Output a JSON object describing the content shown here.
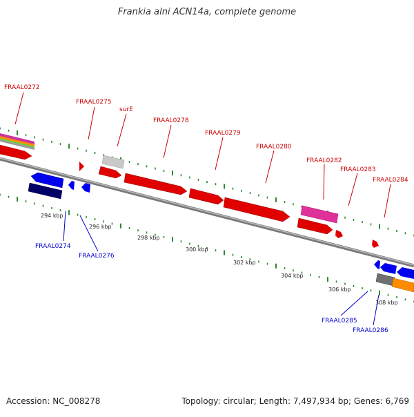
{
  "title": "Frankia alni ACN14a, complete genome",
  "footer": {
    "accession": "Accession: NC_008278",
    "stats": "Topology: circular; Length: 7,497,934 bp; Genes: 6,769"
  },
  "colors": {
    "forward_label": "#cc0000",
    "reverse_label": "#0000cc",
    "backbone": "#8c8c8c",
    "tick": "#2b8a2b",
    "forward_gene": "#e00000",
    "reverse_gene": "#0000ee"
  },
  "scale": {
    "ticks": [
      {
        "label": "294 kbp",
        "kbp": 294
      },
      {
        "label": "296 kbp",
        "kbp": 296
      },
      {
        "label": "298 kbp",
        "kbp": 298
      },
      {
        "label": "300 kbp",
        "kbp": 300
      },
      {
        "label": "302 kbp",
        "kbp": 302
      },
      {
        "label": "304 kbp",
        "kbp": 304
      },
      {
        "label": "306 kbp",
        "kbp": 306
      },
      {
        "label": "308 kbp",
        "kbp": 308
      }
    ]
  },
  "labels": {
    "forward": [
      "FRAAL0272",
      "FRAAL0275",
      "surE",
      "FRAAL0278",
      "FRAAL0279",
      "FRAAL0280",
      "FRAAL0282",
      "FRAAL0283",
      "FRAAL0284"
    ],
    "reverse": [
      "FRAAL0274",
      "FRAAL0276",
      "FRAAL0285",
      "FRAAL0286"
    ]
  }
}
